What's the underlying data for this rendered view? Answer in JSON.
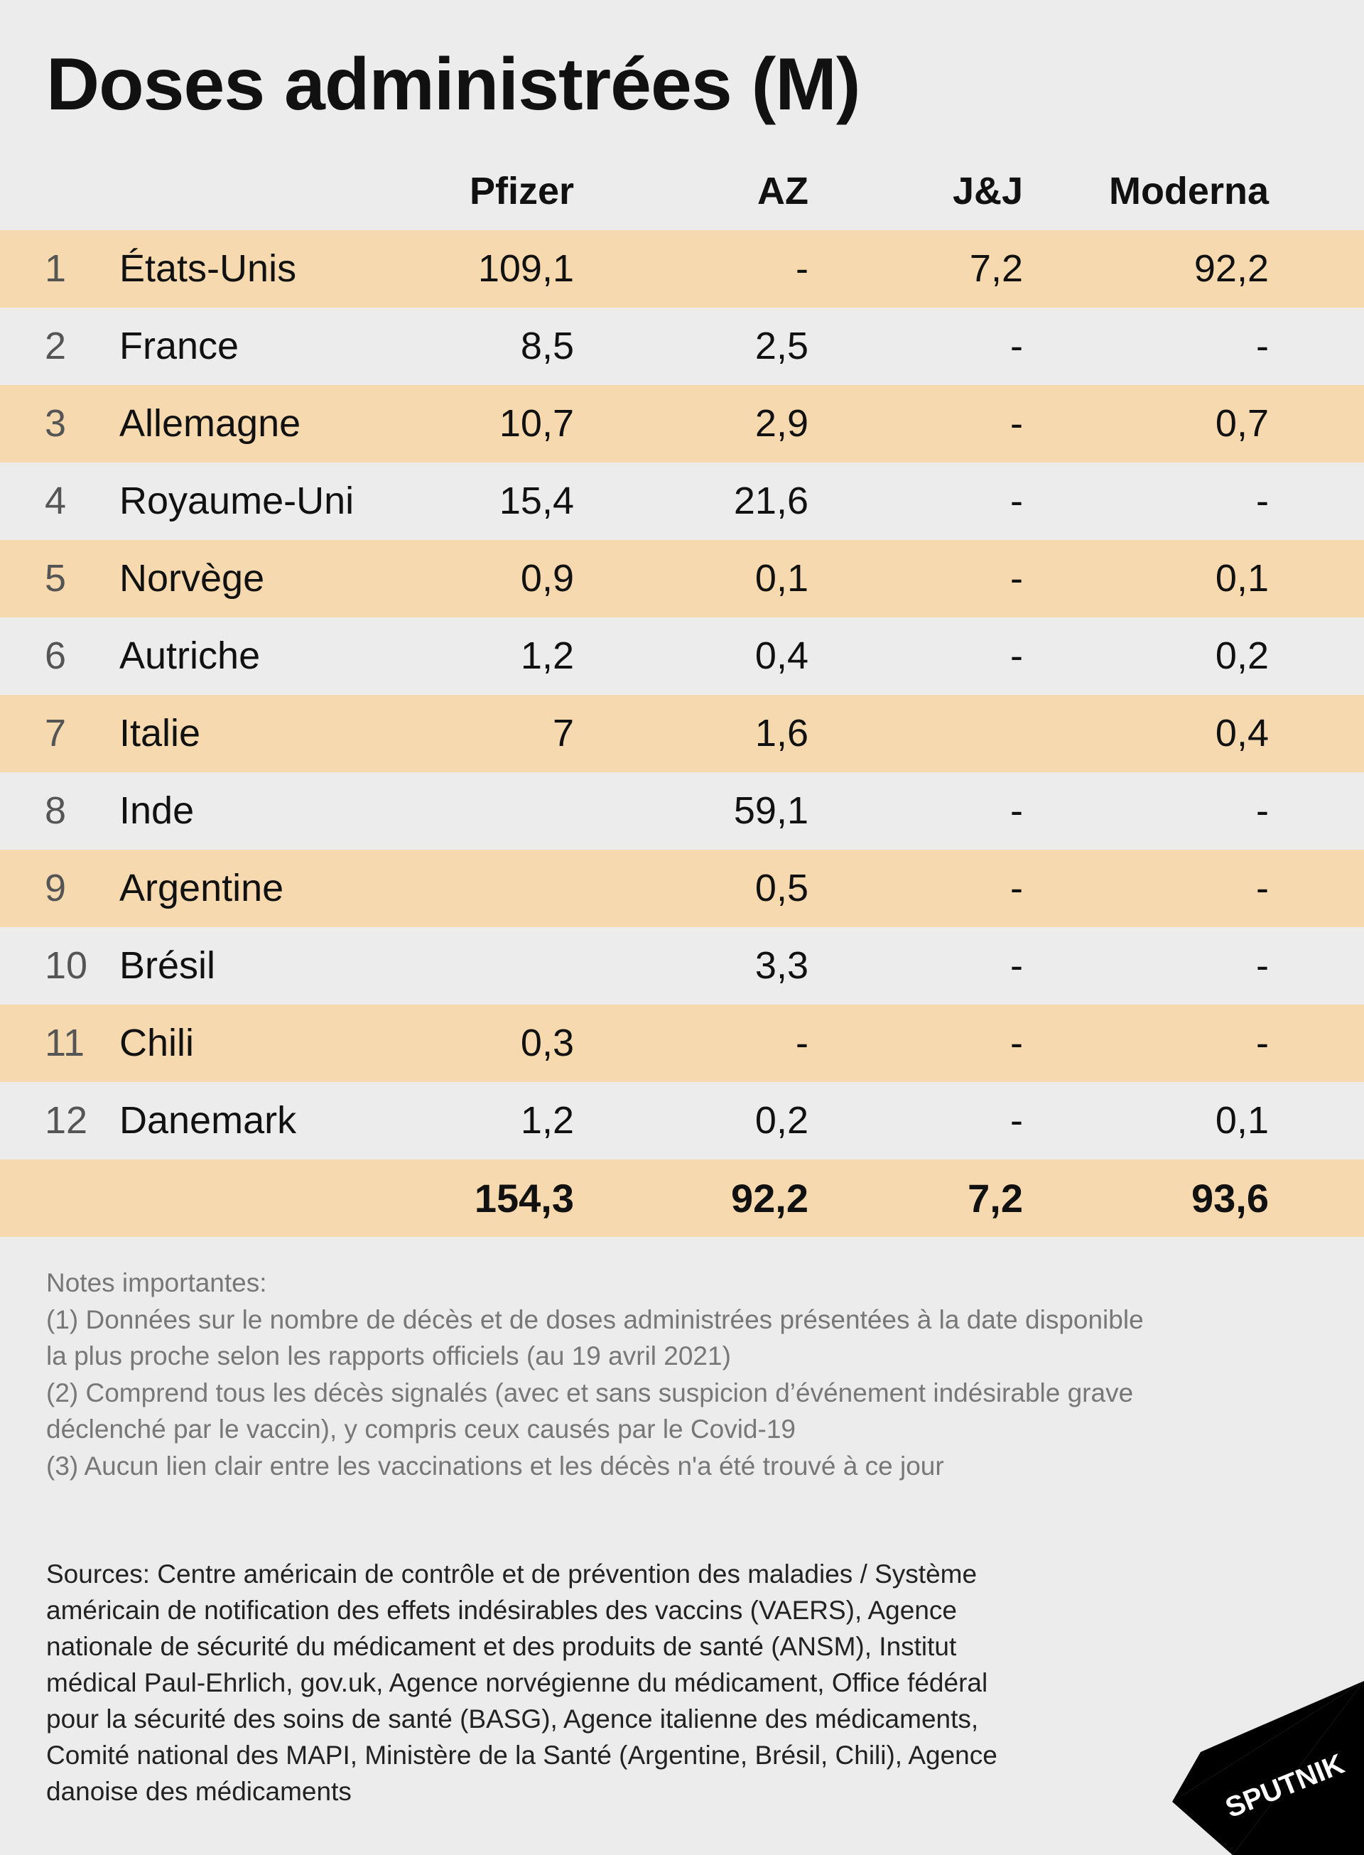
{
  "chart_data": {
    "type": "table",
    "title": "Doses administrées (M)",
    "columns": [
      "Pfizer",
      "AZ",
      "J&J",
      "Moderna"
    ],
    "rows": [
      {
        "rank": "1",
        "country": "États-Unis",
        "values": [
          "109,1",
          "-",
          "7,2",
          "92,2"
        ]
      },
      {
        "rank": "2",
        "country": "France",
        "values": [
          "8,5",
          "2,5",
          "-",
          "-"
        ]
      },
      {
        "rank": "3",
        "country": "Allemagne",
        "values": [
          "10,7",
          "2,9",
          "-",
          "0,7"
        ]
      },
      {
        "rank": "4",
        "country": "Royaume-Uni",
        "values": [
          "15,4",
          "21,6",
          "-",
          "-"
        ]
      },
      {
        "rank": "5",
        "country": "Norvège",
        "values": [
          "0,9",
          "0,1",
          "-",
          "0,1"
        ]
      },
      {
        "rank": "6",
        "country": "Autriche",
        "values": [
          "1,2",
          "0,4",
          "-",
          "0,2"
        ]
      },
      {
        "rank": "7",
        "country": "Italie",
        "values": [
          "7",
          "1,6",
          "",
          "0,4"
        ]
      },
      {
        "rank": "8",
        "country": "Inde",
        "values": [
          "",
          "59,1",
          "-",
          "-"
        ]
      },
      {
        "rank": "9",
        "country": "Argentine",
        "values": [
          "",
          "0,5",
          "-",
          "-"
        ]
      },
      {
        "rank": "10",
        "country": "Brésil",
        "values": [
          "",
          "3,3",
          "-",
          "-"
        ]
      },
      {
        "rank": "11",
        "country": "Chili",
        "values": [
          "0,3",
          "-",
          "-",
          "-"
        ]
      },
      {
        "rank": "12",
        "country": "Danemark",
        "values": [
          "1,2",
          "0,2",
          "-",
          "0,1"
        ]
      }
    ],
    "totals": [
      "154,3",
      "92,2",
      "7,2",
      "93,6"
    ],
    "colors": {
      "row_highlight": "#f6d9ae",
      "row_plain": "#ececec",
      "background": "#ececec"
    }
  },
  "notes": [
    "Notes importantes:",
    "(1) Données sur le nombre de décès et de doses administrées présentées à la date disponible",
    "la plus proche selon les rapports officiels (au 19 avril 2021)",
    "(2) Comprend tous les décès signalés (avec et sans suspicion d’événement indésirable grave",
    "déclenché par le vaccin), y compris ceux causés par le Covid-19",
    "(3) Aucun lien clair entre les vaccinations et les décès n'a été trouvé à ce jour"
  ],
  "sources": [
    "Sources: Centre américain de contrôle et de prévention des maladies / Système",
    "américain de notification des effets indésirables des vaccins (VAERS), Agence",
    "nationale de sécurité du médicament et des produits de santé (ANSM), Institut",
    "médical Paul-Ehrlich, gov.uk, Agence norvégienne du médicament, Office fédéral",
    "pour la sécurité des soins de santé (BASG), Agence italienne des médicaments,",
    "Comité national des MAPI, Ministère de la Santé (Argentine, Brésil, Chili), Agence",
    "danoise des médicaments"
  ],
  "logo": {
    "text": "SPUTNIK",
    "icon": "sputnik-logo-icon"
  }
}
